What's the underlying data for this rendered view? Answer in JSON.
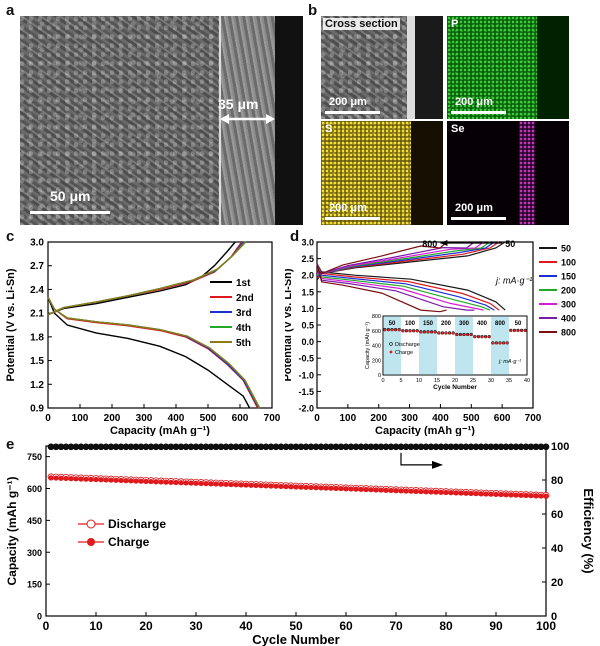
{
  "panel_labels": {
    "a": "a",
    "b": "b",
    "c": "c",
    "d": "d",
    "e": "e"
  },
  "panel_a": {
    "scale_text": "50 μm",
    "thickness_text": "35 μm"
  },
  "panel_b": {
    "cross_section": {
      "title": "Cross section",
      "scale": "200 μm"
    },
    "p_map": {
      "title": "P",
      "scale": "200 μm"
    },
    "s_map": {
      "title": "S",
      "scale": "200 μm"
    },
    "se_map": {
      "title": "Se",
      "scale": "200 μm"
    }
  },
  "colors": {
    "black": "#000000",
    "red": "#e0191c",
    "blue": "#1c2fd6",
    "green": "#24a824",
    "olive": "#8c7a18",
    "magenta": "#d61cd6",
    "purple": "#7a1ca8",
    "pink": "#ff66cc",
    "maroon": "#7a1010",
    "cyan_band": "#bfe6ef",
    "dark_green": "#1f6f1f"
  },
  "chart_data": [
    {
      "id": "c",
      "type": "line",
      "xlabel": "Capacity (mAh g⁻¹)",
      "ylabel": "Potential (V vs. Li-Sn)",
      "xlim": [
        0,
        700
      ],
      "ylim": [
        0.9,
        3.0
      ],
      "xticks": [
        0,
        100,
        200,
        300,
        400,
        500,
        600,
        700
      ],
      "yticks": [
        0.9,
        1.2,
        1.5,
        1.8,
        2.1,
        2.4,
        2.7,
        3.0
      ],
      "legend": [
        "1st",
        "2nd",
        "3rd",
        "4th",
        "5th"
      ],
      "series": [
        {
          "name": "1st",
          "color": "#000000",
          "charge": [
            [
              0,
              2.08
            ],
            [
              50,
              2.16
            ],
            [
              150,
              2.22
            ],
            [
              250,
              2.3
            ],
            [
              350,
              2.38
            ],
            [
              430,
              2.46
            ],
            [
              480,
              2.56
            ],
            [
              520,
              2.7
            ],
            [
              560,
              2.88
            ],
            [
              585,
              3.0
            ]
          ],
          "discharge": [
            [
              0,
              2.3
            ],
            [
              20,
              2.1
            ],
            [
              60,
              1.95
            ],
            [
              150,
              1.85
            ],
            [
              250,
              1.78
            ],
            [
              350,
              1.68
            ],
            [
              430,
              1.55
            ],
            [
              500,
              1.38
            ],
            [
              560,
              1.2
            ],
            [
              610,
              1.05
            ],
            [
              630,
              0.9
            ]
          ]
        },
        {
          "name": "2nd",
          "color": "#e0191c",
          "charge": [
            [
              0,
              2.08
            ],
            [
              50,
              2.17
            ],
            [
              150,
              2.24
            ],
            [
              250,
              2.32
            ],
            [
              350,
              2.4
            ],
            [
              450,
              2.5
            ],
            [
              520,
              2.62
            ],
            [
              570,
              2.8
            ],
            [
              605,
              3.0
            ]
          ],
          "discharge": [
            [
              0,
              2.3
            ],
            [
              20,
              2.15
            ],
            [
              60,
              2.03
            ],
            [
              150,
              1.98
            ],
            [
              250,
              1.94
            ],
            [
              350,
              1.88
            ],
            [
              430,
              1.8
            ],
            [
              500,
              1.65
            ],
            [
              560,
              1.45
            ],
            [
              610,
              1.25
            ],
            [
              655,
              0.9
            ]
          ]
        },
        {
          "name": "3rd",
          "color": "#1c2fd6",
          "charge": [
            [
              0,
              2.08
            ],
            [
              50,
              2.17
            ],
            [
              150,
              2.24
            ],
            [
              250,
              2.32
            ],
            [
              350,
              2.41
            ],
            [
              450,
              2.51
            ],
            [
              525,
              2.64
            ],
            [
              575,
              2.82
            ],
            [
              610,
              3.0
            ]
          ],
          "discharge": [
            [
              0,
              2.3
            ],
            [
              20,
              2.15
            ],
            [
              60,
              2.04
            ],
            [
              150,
              1.99
            ],
            [
              250,
              1.95
            ],
            [
              350,
              1.89
            ],
            [
              430,
              1.81
            ],
            [
              500,
              1.66
            ],
            [
              560,
              1.46
            ],
            [
              612,
              1.25
            ],
            [
              658,
              0.9
            ]
          ]
        },
        {
          "name": "4th",
          "color": "#24a824",
          "charge": [
            [
              0,
              2.08
            ],
            [
              50,
              2.17
            ],
            [
              150,
              2.24
            ],
            [
              250,
              2.32
            ],
            [
              350,
              2.41
            ],
            [
              455,
              2.52
            ],
            [
              528,
              2.65
            ],
            [
              578,
              2.83
            ],
            [
              615,
              3.0
            ]
          ],
          "discharge": [
            [
              0,
              2.3
            ],
            [
              20,
              2.15
            ],
            [
              60,
              2.04
            ],
            [
              150,
              1.99
            ],
            [
              250,
              1.95
            ],
            [
              350,
              1.89
            ],
            [
              435,
              1.81
            ],
            [
              505,
              1.66
            ],
            [
              565,
              1.46
            ],
            [
              615,
              1.25
            ],
            [
              660,
              0.9
            ]
          ]
        },
        {
          "name": "5th",
          "color": "#8c7a18",
          "charge": [
            [
              0,
              2.08
            ],
            [
              50,
              2.17
            ],
            [
              150,
              2.24
            ],
            [
              250,
              2.32
            ],
            [
              350,
              2.41
            ],
            [
              455,
              2.52
            ],
            [
              530,
              2.66
            ],
            [
              580,
              2.84
            ],
            [
              618,
              3.0
            ]
          ],
          "discharge": [
            [
              0,
              2.3
            ],
            [
              20,
              2.15
            ],
            [
              60,
              2.04
            ],
            [
              150,
              1.99
            ],
            [
              250,
              1.95
            ],
            [
              350,
              1.89
            ],
            [
              435,
              1.81
            ],
            [
              505,
              1.66
            ],
            [
              566,
              1.46
            ],
            [
              616,
              1.25
            ],
            [
              662,
              0.9
            ]
          ]
        }
      ]
    },
    {
      "id": "d",
      "type": "line",
      "xlabel": "Capacity (mAh g⁻¹)",
      "ylabel": "Potential (V vs. Li-Sn)",
      "xlim": [
        0,
        700
      ],
      "ylim": [
        -2.0,
        3.0
      ],
      "xticks": [
        0,
        100,
        200,
        300,
        400,
        500,
        600,
        700
      ],
      "yticks": [
        -2.0,
        -1.5,
        -1.0,
        -0.5,
        0.0,
        0.5,
        1.0,
        1.5,
        2.0,
        2.5,
        3.0
      ],
      "legend": [
        "50",
        "100",
        "150",
        "200",
        "300",
        "400",
        "800"
      ],
      "arrow_label_left": "800",
      "arrow_label_right": "50",
      "unit_label": "j: mA·g⁻¹",
      "series": [
        {
          "name": "50",
          "color": "#1a1a1a",
          "cap": 610
        },
        {
          "name": "100",
          "color": "#e0191c",
          "cap": 590
        },
        {
          "name": "150",
          "color": "#1c2fd6",
          "cap": 575
        },
        {
          "name": "200",
          "color": "#24a824",
          "cap": 560
        },
        {
          "name": "300",
          "color": "#d61cd6",
          "cap": 540
        },
        {
          "name": "400",
          "color": "#7a1ca8",
          "cap": 510
        },
        {
          "name": "800",
          "color": "#7a1010",
          "cap": 420
        }
      ],
      "inset": {
        "type": "scatter",
        "xlabel": "Cycle Number",
        "ylabel": "Capacity (mAh g⁻¹)",
        "xlim": [
          0,
          40
        ],
        "ylim": [
          0,
          800
        ],
        "xticks": [
          0,
          5,
          10,
          15,
          20,
          25,
          30,
          35,
          40
        ],
        "yticks": [
          0,
          200,
          400,
          600,
          800
        ],
        "rate_labels": [
          "50",
          "100",
          "150",
          "200",
          "300",
          "400",
          "800",
          "50"
        ],
        "legend": [
          "Discharge",
          "Charge"
        ],
        "unit_label": "j: mA·g⁻¹",
        "segments": [
          [
            0,
            5,
            610
          ],
          [
            5,
            10,
            595
          ],
          [
            10,
            15,
            580
          ],
          [
            15,
            20,
            565
          ],
          [
            20,
            25,
            545
          ],
          [
            25,
            30,
            515
          ],
          [
            30,
            35,
            430
          ],
          [
            35,
            40,
            600
          ]
        ]
      }
    },
    {
      "id": "e",
      "type": "scatter",
      "xlabel": "Cycle Number",
      "ylabel_left": "Capacity (mAh g⁻¹)",
      "ylabel_right": "Efficiency (%)",
      "xlim": [
        0,
        100
      ],
      "xticks": [
        0,
        10,
        20,
        30,
        40,
        50,
        60,
        70,
        80,
        90,
        100
      ],
      "ylim_left": [
        0,
        800
      ],
      "yticks_left": [
        0,
        150,
        300,
        450,
        600,
        750
      ],
      "ylim_right": [
        0,
        100
      ],
      "yticks_right": [
        0,
        20,
        40,
        60,
        80,
        100
      ],
      "legend": [
        "Discharge",
        "Charge"
      ],
      "efficiency": 99.5,
      "discharge_start": 655,
      "discharge_end": 568,
      "charge_start": 650,
      "charge_end": 564
    }
  ]
}
